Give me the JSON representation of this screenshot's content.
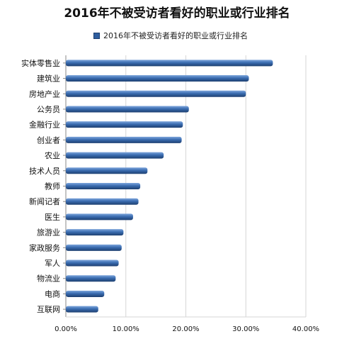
{
  "chart_data": {
    "type": "bar",
    "orientation": "horizontal",
    "title": "2016年不被受访者看好的职业或行业排名",
    "legend": [
      "2016年不被受访者看好的职业或行业排名"
    ],
    "categories": [
      "实体零售业",
      "建筑业",
      "房地产业",
      "公务员",
      "金融行业",
      "创业者",
      "农业",
      "技术人员",
      "教师",
      "新闻记者",
      "医生",
      "旅游业",
      "家政服务",
      "军人",
      "物流业",
      "电商",
      "互联网"
    ],
    "values": [
      34.5,
      30.5,
      30.0,
      20.5,
      19.5,
      19.3,
      16.3,
      13.6,
      12.4,
      12.1,
      11.2,
      9.6,
      9.3,
      8.8,
      8.3,
      6.4,
      5.4
    ],
    "x_ticks": [
      "0.00%",
      "10.00%",
      "20.00%",
      "30.00%",
      "40.00%"
    ],
    "xlim": [
      0,
      40
    ],
    "grid": true,
    "bar_color": "#2f5e9f"
  }
}
